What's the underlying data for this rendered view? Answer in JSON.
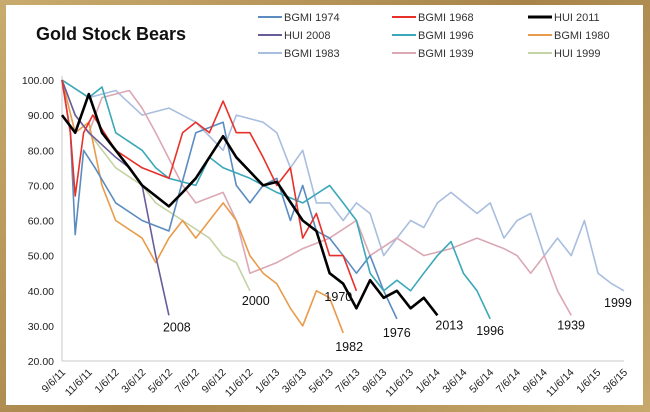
{
  "chart_data": {
    "type": "line",
    "title": "Gold Stock Bears",
    "xlabel": "",
    "ylabel": "",
    "ylim": [
      20,
      100
    ],
    "yticks": [
      "20.00",
      "30.00",
      "40.00",
      "50.00",
      "60.00",
      "70.00",
      "80.00",
      "90.00",
      "100.00"
    ],
    "xlim": [
      "2011-09-06",
      "2015-03-06"
    ],
    "xticks": [
      "9/6/11",
      "11/6/11",
      "1/6/12",
      "3/6/12",
      "5/6/12",
      "7/6/12",
      "9/6/12",
      "11/6/12",
      "1/6/13",
      "3/6/13",
      "5/6/13",
      "7/6/13",
      "9/6/13",
      "11/6/13",
      "1/6/14",
      "3/6/14",
      "5/6/14",
      "7/6/14",
      "9/6/14",
      "11/6/14",
      "1/6/15",
      "3/6/15"
    ],
    "grid": false,
    "legend_position": "top-right",
    "series": [
      {
        "name": "BGMI 1974",
        "color": "#5b8cc0",
        "label": "1976",
        "points": [
          [
            "2011-09-06",
            100
          ],
          [
            "2011-09-25",
            85
          ],
          [
            "2011-10-06",
            56
          ],
          [
            "2011-10-25",
            80
          ],
          [
            "2011-11-20",
            75
          ],
          [
            "2012-01-06",
            65
          ],
          [
            "2012-03-06",
            60
          ],
          [
            "2012-05-06",
            57
          ],
          [
            "2012-07-06",
            85
          ],
          [
            "2012-09-06",
            88
          ],
          [
            "2012-10-06",
            70
          ],
          [
            "2012-11-06",
            65
          ],
          [
            "2012-12-06",
            70
          ],
          [
            "2013-01-06",
            72
          ],
          [
            "2013-02-06",
            60
          ],
          [
            "2013-03-06",
            70
          ],
          [
            "2013-04-06",
            57
          ],
          [
            "2013-05-06",
            55
          ],
          [
            "2013-06-06",
            50
          ],
          [
            "2013-07-06",
            45
          ],
          [
            "2013-08-06",
            50
          ],
          [
            "2013-09-06",
            40
          ],
          [
            "2013-10-06",
            32
          ]
        ]
      },
      {
        "name": "BGMI 1968",
        "color": "#e8302a",
        "label": "1970",
        "points": [
          [
            "2011-09-06",
            100
          ],
          [
            "2011-09-25",
            85
          ],
          [
            "2011-10-06",
            67
          ],
          [
            "2011-10-25",
            85
          ],
          [
            "2011-11-15",
            90
          ],
          [
            "2012-01-06",
            80
          ],
          [
            "2012-03-06",
            75
          ],
          [
            "2012-05-06",
            72
          ],
          [
            "2012-06-06",
            85
          ],
          [
            "2012-07-06",
            88
          ],
          [
            "2012-08-06",
            85
          ],
          [
            "2012-09-06",
            94
          ],
          [
            "2012-10-06",
            85
          ],
          [
            "2012-11-06",
            85
          ],
          [
            "2012-12-06",
            78
          ],
          [
            "2013-01-06",
            70
          ],
          [
            "2013-02-06",
            75
          ],
          [
            "2013-03-06",
            55
          ],
          [
            "2013-04-06",
            62
          ],
          [
            "2013-05-06",
            50
          ],
          [
            "2013-06-06",
            50
          ],
          [
            "2013-07-06",
            40
          ]
        ]
      },
      {
        "name": "HUI 2011",
        "color": "#000000",
        "label": "2013",
        "points": [
          [
            "2011-09-06",
            90
          ],
          [
            "2011-10-06",
            85
          ],
          [
            "2011-11-06",
            96
          ],
          [
            "2011-12-06",
            85
          ],
          [
            "2012-01-06",
            80
          ],
          [
            "2012-02-06",
            75
          ],
          [
            "2012-03-06",
            70
          ],
          [
            "2012-05-06",
            64
          ],
          [
            "2012-06-06",
            68
          ],
          [
            "2012-07-06",
            72
          ],
          [
            "2012-09-06",
            84
          ],
          [
            "2012-10-06",
            78
          ],
          [
            "2012-12-06",
            70
          ],
          [
            "2013-01-06",
            71
          ],
          [
            "2013-03-06",
            60
          ],
          [
            "2013-04-06",
            57
          ],
          [
            "2013-05-06",
            45
          ],
          [
            "2013-06-06",
            42
          ],
          [
            "2013-07-06",
            35
          ],
          [
            "2013-08-06",
            43
          ],
          [
            "2013-09-06",
            38
          ],
          [
            "2013-10-06",
            40
          ],
          [
            "2013-11-06",
            35
          ],
          [
            "2013-12-06",
            38
          ],
          [
            "2014-01-06",
            33
          ]
        ]
      },
      {
        "name": "HUI 2008",
        "color": "#6a5c9a",
        "label": "2008",
        "points": [
          [
            "2011-09-06",
            100
          ],
          [
            "2011-10-06",
            90
          ],
          [
            "2011-11-06",
            85
          ],
          [
            "2012-01-06",
            78
          ],
          [
            "2012-02-06",
            75
          ],
          [
            "2012-03-06",
            70
          ],
          [
            "2012-04-06",
            50
          ],
          [
            "2012-05-06",
            33
          ]
        ]
      },
      {
        "name": "BGMI 1996",
        "color": "#3aa8b8",
        "label": "1996",
        "points": [
          [
            "2011-09-06",
            100
          ],
          [
            "2011-11-06",
            95
          ],
          [
            "2011-12-06",
            98
          ],
          [
            "2012-01-06",
            85
          ],
          [
            "2012-03-06",
            80
          ],
          [
            "2012-04-06",
            75
          ],
          [
            "2012-05-06",
            72
          ],
          [
            "2012-07-06",
            70
          ],
          [
            "2012-08-06",
            78
          ],
          [
            "2012-09-06",
            75
          ],
          [
            "2012-11-06",
            72
          ],
          [
            "2013-01-06",
            68
          ],
          [
            "2013-03-06",
            65
          ],
          [
            "2013-05-06",
            70
          ],
          [
            "2013-06-06",
            65
          ],
          [
            "2013-07-06",
            60
          ],
          [
            "2013-08-06",
            45
          ],
          [
            "2013-09-06",
            40
          ],
          [
            "2013-10-06",
            43
          ],
          [
            "2013-11-06",
            40
          ],
          [
            "2013-12-06",
            45
          ],
          [
            "2014-01-06",
            50
          ],
          [
            "2014-02-06",
            54
          ],
          [
            "2014-03-06",
            45
          ],
          [
            "2014-04-06",
            40
          ],
          [
            "2014-05-06",
            32
          ]
        ]
      },
      {
        "name": "BGMI 1980",
        "color": "#e89b4a",
        "label": "1982",
        "points": [
          [
            "2011-09-06",
            100
          ],
          [
            "2011-10-06",
            85
          ],
          [
            "2011-11-06",
            88
          ],
          [
            "2011-12-06",
            70
          ],
          [
            "2012-01-06",
            60
          ],
          [
            "2012-03-06",
            55
          ],
          [
            "2012-04-06",
            48
          ],
          [
            "2012-05-06",
            55
          ],
          [
            "2012-06-06",
            60
          ],
          [
            "2012-07-06",
            55
          ],
          [
            "2012-08-06",
            60
          ],
          [
            "2012-09-06",
            65
          ],
          [
            "2012-10-06",
            60
          ],
          [
            "2012-11-06",
            50
          ],
          [
            "2012-12-06",
            45
          ],
          [
            "2013-01-06",
            42
          ],
          [
            "2013-02-06",
            35
          ],
          [
            "2013-03-06",
            30
          ],
          [
            "2013-04-06",
            40
          ],
          [
            "2013-05-06",
            38
          ],
          [
            "2013-06-06",
            28
          ]
        ]
      },
      {
        "name": "BGMI 1983",
        "color": "#a9bedf",
        "label": "1999",
        "points": [
          [
            "2011-09-06",
            100
          ],
          [
            "2011-11-06",
            95
          ],
          [
            "2012-01-06",
            97
          ],
          [
            "2012-03-06",
            90
          ],
          [
            "2012-05-06",
            92
          ],
          [
            "2012-07-06",
            88
          ],
          [
            "2012-09-06",
            80
          ],
          [
            "2012-10-06",
            90
          ],
          [
            "2012-12-06",
            88
          ],
          [
            "2013-01-06",
            85
          ],
          [
            "2013-02-06",
            75
          ],
          [
            "2013-03-06",
            80
          ],
          [
            "2013-04-06",
            65
          ],
          [
            "2013-05-06",
            65
          ],
          [
            "2013-06-06",
            60
          ],
          [
            "2013-07-06",
            65
          ],
          [
            "2013-08-06",
            62
          ],
          [
            "2013-09-06",
            50
          ],
          [
            "2013-10-06",
            55
          ],
          [
            "2013-11-06",
            60
          ],
          [
            "2013-12-06",
            58
          ],
          [
            "2014-01-06",
            65
          ],
          [
            "2014-02-06",
            68
          ],
          [
            "2014-04-06",
            62
          ],
          [
            "2014-05-06",
            65
          ],
          [
            "2014-06-06",
            55
          ],
          [
            "2014-07-06",
            60
          ],
          [
            "2014-08-06",
            62
          ],
          [
            "2014-09-06",
            50
          ],
          [
            "2014-10-06",
            55
          ],
          [
            "2014-11-06",
            50
          ],
          [
            "2014-12-06",
            60
          ],
          [
            "2015-01-06",
            45
          ],
          [
            "2015-02-06",
            42
          ],
          [
            "2015-03-06",
            40
          ]
        ]
      },
      {
        "name": "BGMI 1939",
        "color": "#dba8b4",
        "label": "1939",
        "points": [
          [
            "2011-09-06",
            100
          ],
          [
            "2011-10-06",
            90
          ],
          [
            "2011-11-06",
            85
          ],
          [
            "2011-12-06",
            95
          ],
          [
            "2012-02-06",
            97
          ],
          [
            "2012-03-06",
            92
          ],
          [
            "2012-04-06",
            85
          ],
          [
            "2012-06-06",
            70
          ],
          [
            "2012-07-06",
            65
          ],
          [
            "2012-09-06",
            68
          ],
          [
            "2012-10-06",
            60
          ],
          [
            "2012-11-06",
            45
          ],
          [
            "2013-01-06",
            48
          ],
          [
            "2013-03-06",
            52
          ],
          [
            "2013-05-06",
            55
          ],
          [
            "2013-07-06",
            60
          ],
          [
            "2013-08-06",
            50
          ],
          [
            "2013-10-06",
            55
          ],
          [
            "2013-12-06",
            50
          ],
          [
            "2014-02-06",
            52
          ],
          [
            "2014-04-06",
            55
          ],
          [
            "2014-06-06",
            52
          ],
          [
            "2014-07-06",
            50
          ],
          [
            "2014-08-06",
            45
          ],
          [
            "2014-09-06",
            50
          ],
          [
            "2014-10-06",
            40
          ],
          [
            "2014-11-06",
            33
          ]
        ]
      },
      {
        "name": "HUI 1999",
        "color": "#c3d3a4",
        "label": "2000",
        "points": [
          [
            "2011-09-06",
            100
          ],
          [
            "2011-10-06",
            90
          ],
          [
            "2011-11-06",
            85
          ],
          [
            "2012-01-06",
            75
          ],
          [
            "2012-03-06",
            70
          ],
          [
            "2012-04-06",
            65
          ],
          [
            "2012-06-06",
            60
          ],
          [
            "2012-08-06",
            55
          ],
          [
            "2012-09-06",
            50
          ],
          [
            "2012-10-06",
            48
          ],
          [
            "2012-11-06",
            40
          ]
        ]
      }
    ]
  }
}
